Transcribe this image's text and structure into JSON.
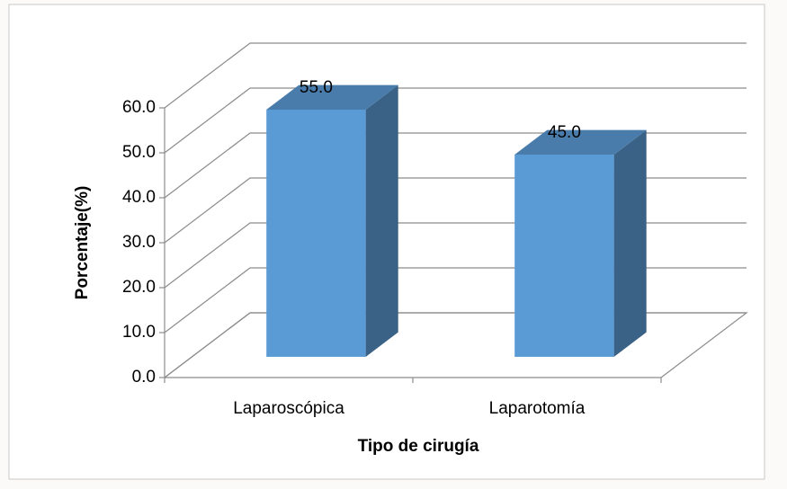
{
  "chart_data": {
    "type": "bar3d",
    "categories": [
      "Laparoscópica",
      "Laparotomía"
    ],
    "values": [
      55,
      45
    ],
    "value_labels": [
      "55.0",
      "45.0"
    ],
    "color": "#5b9bd5",
    "xlabel": "Tipo de cirugía",
    "ylabel": "Porcentaje(%)",
    "ylim": [
      0,
      60
    ],
    "yticks": [
      {
        "value": 0,
        "label": "0.0"
      },
      {
        "value": 10,
        "label": "10.0"
      },
      {
        "value": 20,
        "label": "20.0"
      },
      {
        "value": 30,
        "label": "30.0"
      },
      {
        "value": 40,
        "label": "40.0"
      },
      {
        "value": 50,
        "label": "50.0"
      },
      {
        "value": 60,
        "label": "60.0"
      }
    ],
    "grid": true
  }
}
